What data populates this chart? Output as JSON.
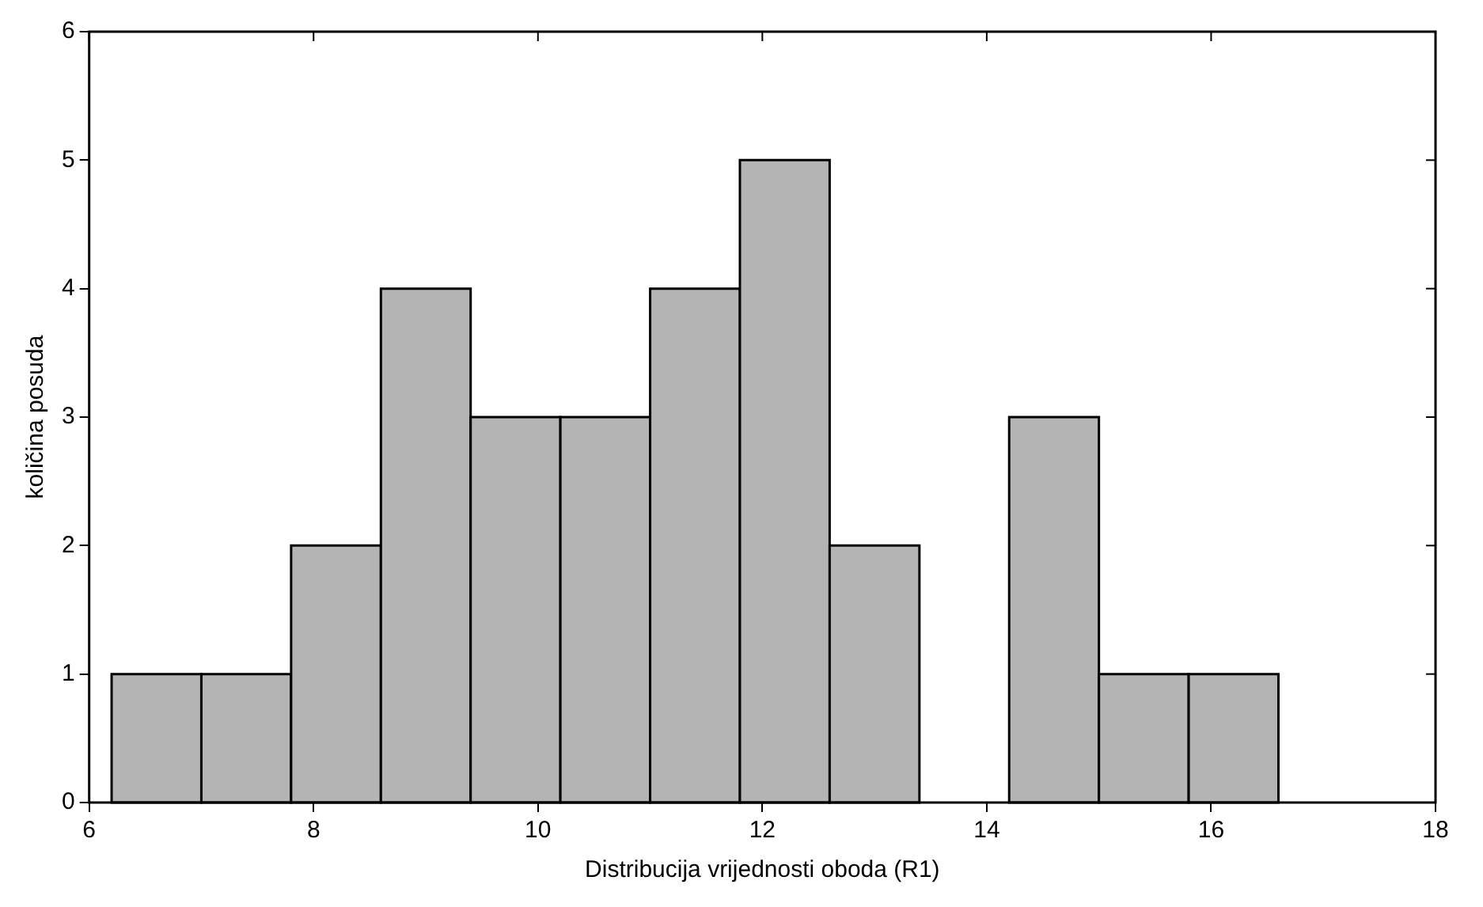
{
  "chart_data": {
    "type": "histogram",
    "xlabel": "Distribucija vrijednosti oboda (R1)",
    "ylabel": "količina posuda",
    "bins": [
      6.2,
      7.0,
      7.8,
      8.6,
      9.4,
      10.2,
      11.0,
      11.8,
      12.6,
      13.4,
      14.2,
      15.0,
      15.8,
      16.6
    ],
    "values": [
      1,
      1,
      2,
      4,
      3,
      3,
      4,
      5,
      2,
      0,
      3,
      1,
      1
    ],
    "color": "#b4b4b4",
    "xlim": [
      6,
      18
    ],
    "xticks": [
      6,
      8,
      10,
      12,
      14,
      16,
      18
    ],
    "ylim": [
      0,
      6
    ],
    "yticks": [
      0,
      1,
      2,
      3,
      4,
      5,
      6
    ],
    "grid": false,
    "legend": false
  }
}
